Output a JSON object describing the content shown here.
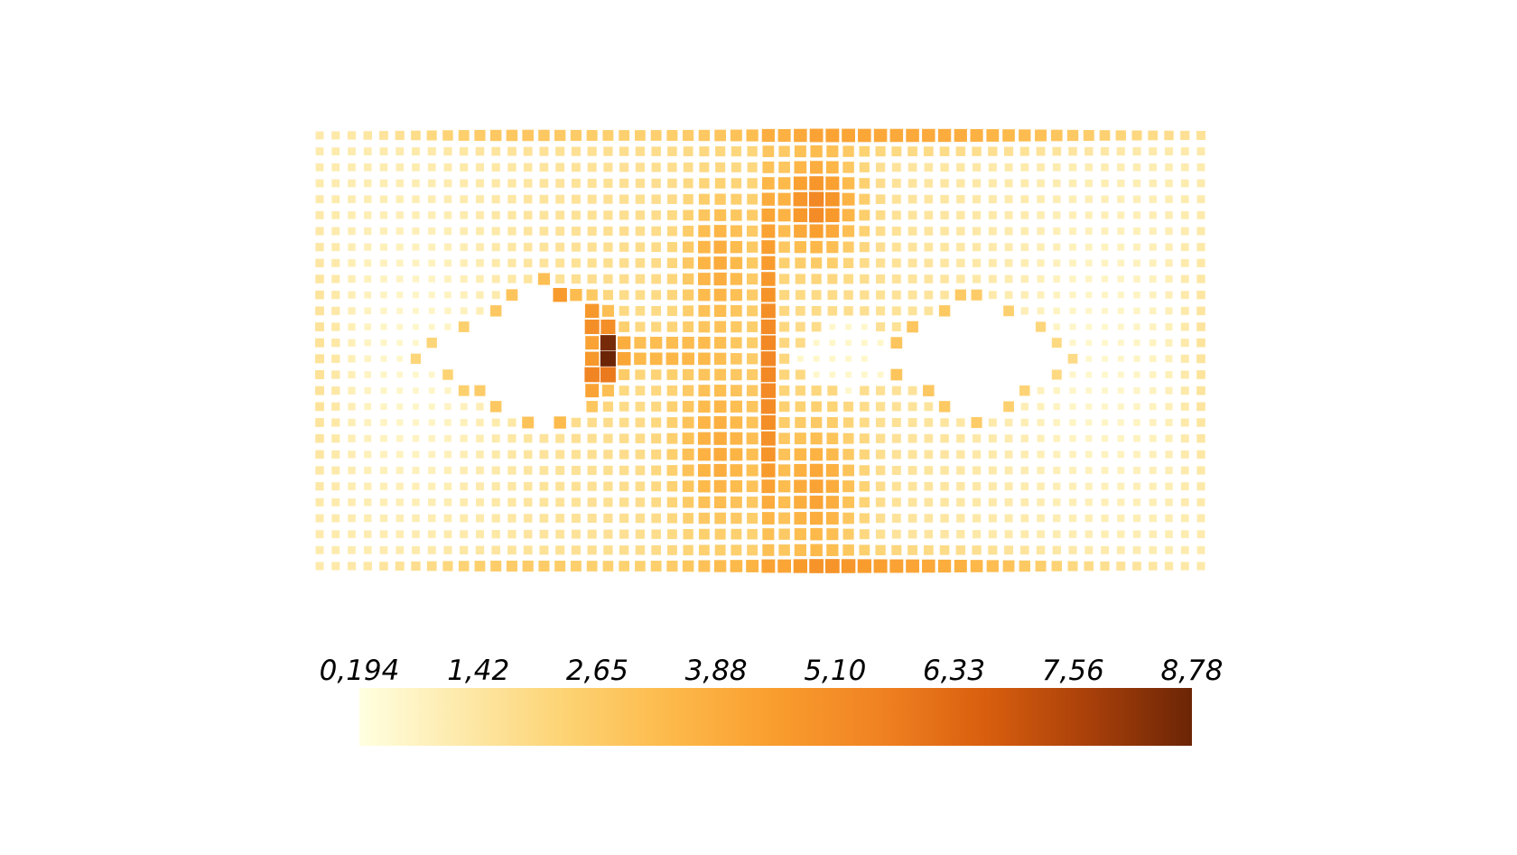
{
  "chart_data": {
    "type": "heatmap",
    "title": "",
    "xlabel": "",
    "ylabel": "",
    "grid": false,
    "legend": "bottom colorbar",
    "colorbar": {
      "min": 0.194,
      "max": 8.78,
      "tick_labels": [
        "0,194",
        "1,42",
        "2,65",
        "3,88",
        "5,10",
        "6,33",
        "7,56",
        "8,78"
      ],
      "colors": [
        "#ffffe0",
        "#fde9a9",
        "#fdd272",
        "#fdb94a",
        "#f99d2e",
        "#f08222",
        "#d95f0e",
        "#a9400a",
        "#6b2506"
      ]
    },
    "grid_size": {
      "cols": 56,
      "rows": 28
    },
    "features": [
      {
        "kind": "wedge",
        "value": 8.78
      },
      {
        "kind": "bar",
        "value": 5.4
      },
      {
        "kind": "blob",
        "value": 6.3
      },
      {
        "kind": "blob",
        "value": 5.5
      },
      {
        "kind": "band",
        "value": 5.0
      },
      {
        "kind": "band",
        "value": 4.2
      },
      {
        "kind": "hole",
        "value": 0.3
      }
    ]
  }
}
